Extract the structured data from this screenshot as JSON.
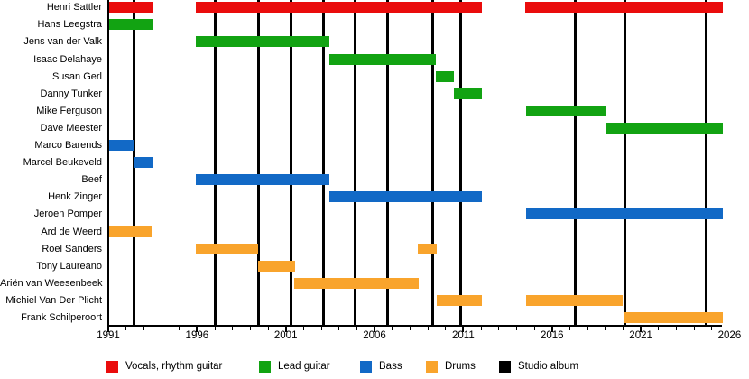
{
  "chart_data": {
    "type": "bar",
    "subtype": "membership-timeline-gantt",
    "title": "",
    "x_axis": {
      "start": 1991,
      "visible_end": 2025.6,
      "major_ticks": [
        1991,
        1996,
        2001,
        2006,
        2011,
        2016,
        2021,
        2026
      ],
      "major_tick_labels": [
        "1991",
        "1996",
        "2001",
        "2006",
        "2011",
        "2016",
        "2021",
        "2026"
      ],
      "minor_tick_interval": 1,
      "grid": "off",
      "last_label_clipped": true
    },
    "role_colors": {
      "vocals": "#ea0c0c",
      "lead": "#12a312",
      "bass": "#1269c6",
      "drums": "#f9a42c",
      "album": "#000000"
    },
    "legend": {
      "position": "bottom",
      "items": [
        {
          "label": "Vocals, rhythm guitar",
          "role": "vocals",
          "color": "#ea0c0c"
        },
        {
          "label": "Lead guitar",
          "role": "lead",
          "color": "#12a312"
        },
        {
          "label": "Bass",
          "role": "bass",
          "color": "#1269c6"
        },
        {
          "label": "Drums",
          "role": "drums",
          "color": "#f9a42c"
        },
        {
          "label": "Studio album",
          "role": "album",
          "color": "#000000"
        }
      ]
    },
    "album_markers_years": [
      1992.47,
      1997.0,
      1999.44,
      2001.27,
      2003.1,
      2004.9,
      2006.76,
      2009.3,
      2010.83,
      2017.33,
      2020.08,
      2024.66
    ],
    "members": [
      {
        "name": "Henri Sattler",
        "role": "vocals",
        "periods": [
          [
            1991.05,
            1993.5
          ],
          [
            1995.95,
            2012.05
          ],
          [
            2014.5,
            2025.6
          ]
        ]
      },
      {
        "name": "Hans Leegstra",
        "role": "lead",
        "periods": [
          [
            1991.05,
            1993.5
          ]
        ]
      },
      {
        "name": "Jens van der Valk",
        "role": "lead",
        "periods": [
          [
            1995.95,
            2003.45
          ]
        ]
      },
      {
        "name": "Isaac Delahaye",
        "role": "lead",
        "periods": [
          [
            2003.45,
            2009.45
          ]
        ]
      },
      {
        "name": "Susan Gerl",
        "role": "lead",
        "periods": [
          [
            2009.45,
            2010.45
          ]
        ]
      },
      {
        "name": "Danny Tunker",
        "role": "lead",
        "periods": [
          [
            2010.45,
            2012.05
          ]
        ]
      },
      {
        "name": "Mike Ferguson",
        "role": "lead",
        "periods": [
          [
            2014.55,
            2019.0
          ]
        ]
      },
      {
        "name": "Dave Meester",
        "role": "lead",
        "periods": [
          [
            2019.0,
            2025.6
          ]
        ]
      },
      {
        "name": "Marco Barends",
        "role": "bass",
        "periods": [
          [
            1991.05,
            1992.47
          ]
        ]
      },
      {
        "name": "Marcel Beukeveld",
        "role": "bass",
        "periods": [
          [
            1992.47,
            1993.5
          ]
        ]
      },
      {
        "name": "Beef",
        "role": "bass",
        "periods": [
          [
            1995.95,
            2003.45
          ]
        ]
      },
      {
        "name": "Henk Zinger",
        "role": "bass",
        "periods": [
          [
            2003.45,
            2012.05
          ]
        ]
      },
      {
        "name": "Jeroen Pomper",
        "role": "bass",
        "periods": [
          [
            2014.55,
            2025.6
          ]
        ]
      },
      {
        "name": "Ard de Weerd",
        "role": "drums",
        "periods": [
          [
            1991.05,
            1993.45
          ]
        ]
      },
      {
        "name": "Roel Sanders",
        "role": "drums",
        "periods": [
          [
            1995.95,
            1999.45
          ],
          [
            2008.45,
            2009.5
          ]
        ]
      },
      {
        "name": "Tony Laureano",
        "role": "drums",
        "periods": [
          [
            1999.45,
            2001.5
          ]
        ]
      },
      {
        "name": "Ariën van Weesenbeek",
        "role": "drums",
        "periods": [
          [
            2001.45,
            2008.5
          ]
        ]
      },
      {
        "name": "Michiel Van Der Plicht",
        "role": "drums",
        "periods": [
          [
            2009.5,
            2012.05
          ],
          [
            2014.55,
            2020.0
          ]
        ]
      },
      {
        "name": "Frank Schilperoort",
        "role": "drums",
        "periods": [
          [
            2020.1,
            2025.6
          ]
        ]
      }
    ]
  }
}
